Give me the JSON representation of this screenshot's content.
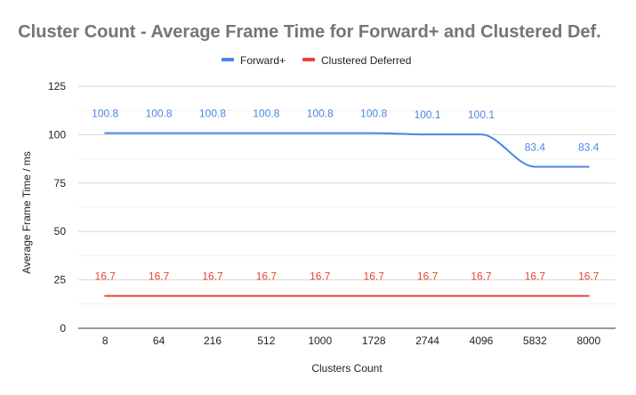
{
  "chart_data": {
    "type": "line",
    "title": "Cluster Count - Average Frame Time for Forward+ and Clustered Def.",
    "xlabel": "Clusters Count",
    "ylabel": "Average Frame Time / ms",
    "categories": [
      "8",
      "64",
      "216",
      "512",
      "1000",
      "1728",
      "2744",
      "4096",
      "5832",
      "8000"
    ],
    "ylim": [
      0,
      125
    ],
    "yticks": [
      "0",
      "25",
      "50",
      "75",
      "100",
      "125"
    ],
    "grid": true,
    "legend_position": "top",
    "series": [
      {
        "name": "Forward+",
        "color": "#4a86e8",
        "values": [
          100.8,
          100.8,
          100.8,
          100.8,
          100.8,
          100.8,
          100.1,
          100.1,
          83.4,
          83.4
        ],
        "labels": [
          "100.8",
          "100.8",
          "100.8",
          "100.8",
          "100.8",
          "100.8",
          "100.1",
          "100.1",
          "83.4",
          "83.4"
        ]
      },
      {
        "name": "Clustered Deferred",
        "color": "#ea4335",
        "values": [
          16.7,
          16.7,
          16.7,
          16.7,
          16.7,
          16.7,
          16.7,
          16.7,
          16.7,
          16.7
        ],
        "labels": [
          "16.7",
          "16.7",
          "16.7",
          "16.7",
          "16.7",
          "16.7",
          "16.7",
          "16.7",
          "16.7",
          "16.7"
        ]
      }
    ]
  }
}
